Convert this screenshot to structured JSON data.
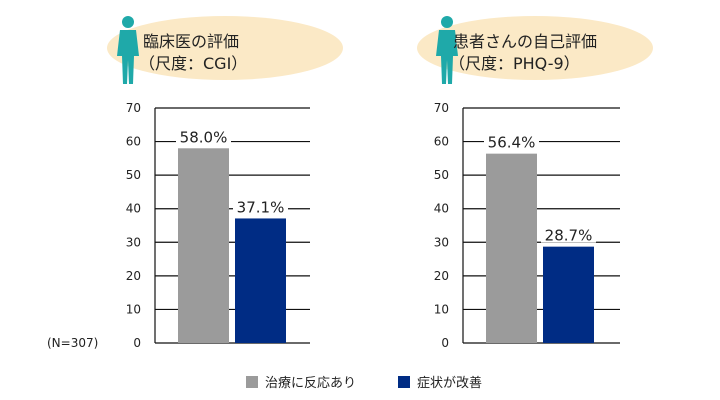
{
  "sample_note": "(N=307)",
  "colors": {
    "response": "#9b9b9b",
    "improved": "#002c84",
    "ellipse": "#fbe9c6",
    "figure": "#1fa9a9"
  },
  "legend": [
    {
      "label": "治療に反応あり",
      "color": "#9b9b9b"
    },
    {
      "label": "症状が改善",
      "color": "#002c84"
    }
  ],
  "chart_data": [
    {
      "type": "bar",
      "title": "臨床医の評価",
      "subtitle": "（尺度：CGI）",
      "icon": "doctor-figure-icon",
      "ylim": [
        0,
        70
      ],
      "yticks": [
        "0",
        "10",
        "20",
        "30",
        "40",
        "50",
        "60",
        "70"
      ],
      "grid": true,
      "series": [
        {
          "name": "治療に反応あり",
          "value": 58.0,
          "label": "58.0%"
        },
        {
          "name": "症状が改善",
          "value": 37.1,
          "label": "37.1%"
        }
      ]
    },
    {
      "type": "bar",
      "title": "患者さんの自己評価",
      "subtitle": "（尺度：PHQ-9）",
      "icon": "patient-figure-icon",
      "ylim": [
        0,
        70
      ],
      "yticks": [
        "0",
        "10",
        "20",
        "30",
        "40",
        "50",
        "60",
        "70"
      ],
      "grid": true,
      "series": [
        {
          "name": "治療に反応あり",
          "value": 56.4,
          "label": "56.4%"
        },
        {
          "name": "症状が改善",
          "value": 28.7,
          "label": "28.7%"
        }
      ]
    }
  ]
}
